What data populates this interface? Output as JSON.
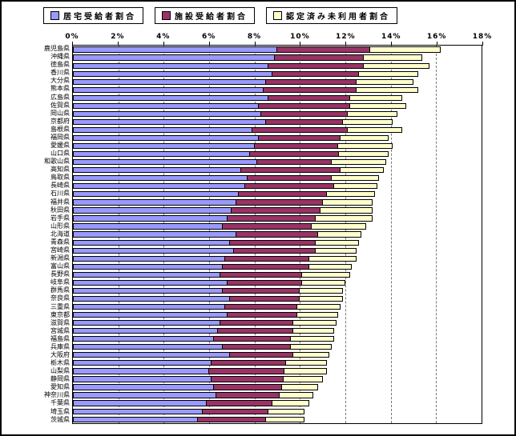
{
  "legend": {
    "items": [
      {
        "label": "居宅受給者割合",
        "color": "#9999FF",
        "icon": "legend-swatch-blue"
      },
      {
        "label": "施設受給者割合",
        "color": "#993366",
        "icon": "legend-swatch-maroon"
      },
      {
        "label": "認定済み未利用者割合",
        "color": "#FFFFCC",
        "icon": "legend-swatch-yellow"
      }
    ]
  },
  "axis": {
    "tick_labels": [
      "0%",
      "2%",
      "4%",
      "6%",
      "8%",
      "10%",
      "12%",
      "14%",
      "16%",
      "18%"
    ]
  },
  "chart_data": {
    "type": "bar",
    "orientation": "horizontal",
    "stacked": true,
    "title": "",
    "xlabel": "",
    "ylabel": "",
    "xlim": [
      0,
      18
    ],
    "x_ticks": [
      0,
      2,
      4,
      6,
      8,
      10,
      12,
      14,
      16,
      18
    ],
    "grid": "vertical-dashed",
    "legend_position": "top",
    "categories": [
      "鹿児島県",
      "沖縄県",
      "徳島県",
      "香川県",
      "大分県",
      "熊本県",
      "広島県",
      "佐賀県",
      "岡山県",
      "京都府",
      "島根県",
      "福岡県",
      "愛媛県",
      "山口県",
      "和歌山県",
      "高知県",
      "鳥取県",
      "長崎県",
      "石川県",
      "福井県",
      "秋田県",
      "岩手県",
      "山形県",
      "北海道",
      "青森県",
      "宮崎県",
      "新潟県",
      "富山県",
      "長野県",
      "岐阜県",
      "群馬県",
      "奈良県",
      "三重県",
      "東京都",
      "滋賀県",
      "宮城県",
      "福島県",
      "兵庫県",
      "大阪府",
      "栃木県",
      "山梨県",
      "静岡県",
      "愛知県",
      "神奈川県",
      "千葉県",
      "埼玉県",
      "茨城県"
    ],
    "series": [
      {
        "name": "居宅受給者割合",
        "color": "#9999FF",
        "values": [
          9.0,
          8.9,
          8.6,
          8.8,
          8.5,
          8.4,
          8.6,
          8.2,
          8.3,
          8.5,
          7.9,
          8.2,
          8.0,
          7.8,
          8.1,
          7.4,
          7.7,
          7.6,
          7.3,
          7.2,
          7.0,
          6.8,
          6.6,
          7.2,
          6.9,
          7.1,
          6.7,
          6.6,
          6.5,
          6.8,
          6.6,
          6.9,
          6.7,
          6.8,
          6.5,
          6.4,
          6.2,
          6.6,
          6.9,
          6.1,
          6.0,
          6.1,
          6.2,
          6.3,
          5.9,
          5.7,
          5.5
        ]
      },
      {
        "name": "施設受給者割合",
        "color": "#993366",
        "values": [
          4.1,
          3.9,
          4.2,
          3.8,
          4.0,
          4.1,
          3.6,
          4.0,
          3.8,
          3.4,
          4.2,
          3.6,
          3.7,
          3.9,
          3.3,
          4.4,
          3.7,
          3.9,
          3.9,
          3.8,
          3.9,
          3.9,
          3.9,
          3.6,
          3.8,
          3.6,
          3.7,
          3.8,
          3.6,
          3.3,
          3.4,
          3.1,
          3.2,
          3.1,
          3.2,
          3.3,
          3.4,
          3.0,
          2.8,
          3.3,
          3.3,
          3.2,
          3.0,
          2.8,
          2.9,
          2.9,
          3.0
        ]
      },
      {
        "name": "認定済み未利用者割合",
        "color": "#FFFFCC",
        "values": [
          3.1,
          2.6,
          2.9,
          2.6,
          2.5,
          2.7,
          2.3,
          2.5,
          2.2,
          2.2,
          2.4,
          2.1,
          2.4,
          2.2,
          2.4,
          1.9,
          2.1,
          1.9,
          2.1,
          2.2,
          2.3,
          2.5,
          2.4,
          1.9,
          1.9,
          1.8,
          2.1,
          1.9,
          2.1,
          1.9,
          1.9,
          1.9,
          1.9,
          1.8,
          1.9,
          1.8,
          1.9,
          1.8,
          1.6,
          1.8,
          1.9,
          1.7,
          1.6,
          1.5,
          1.6,
          1.6,
          1.7
        ]
      }
    ]
  }
}
